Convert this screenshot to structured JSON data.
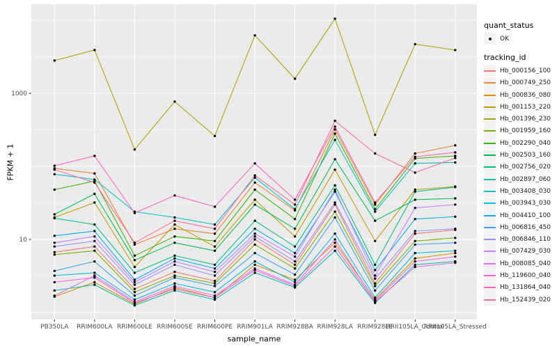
{
  "colors": {
    "panel_bg": "#EBEBEB",
    "grid": "#FFFFFF",
    "tick_label": "#4D4D4D",
    "tick_mark": "#333333",
    "point": "#000000",
    "legend_key_bg": "#F2F2F2"
  },
  "legend": {
    "quant_status": {
      "title": "quant_status",
      "items": [
        {
          "label": "OK",
          "marker": "point"
        }
      ]
    },
    "tracking_id": {
      "title": "tracking_id"
    }
  },
  "chart_data": {
    "type": "line",
    "title": "",
    "xlabel": "sample_name",
    "ylabel": "FPKM + 1",
    "y_scale": "log10",
    "ylim": [
      0.8,
      15000
    ],
    "y_tick_values": [
      1000,
      10
    ],
    "y_tick_labels": [
      "1000",
      "10"
    ],
    "y_gridlines_major": [
      1,
      10,
      100,
      1000,
      10000
    ],
    "y_gridlines_minor": [
      3.1623,
      31.623,
      316.23,
      3162.3
    ],
    "grid": "on",
    "legend_position": "right",
    "point_marker": "filled-circle",
    "categories": [
      "PB350LA",
      "RRIM600LA",
      "RRIM600LE",
      "RRIM600SE",
      "RRIM600PE",
      "RRIM901LA",
      "RRIM928BA",
      "RRIM928LA",
      "RRIM928LE",
      "RRII105LA_Control",
      "RRII105LA_Stressed"
    ],
    "series": [
      {
        "tracking_id": "Hb_000156_100",
        "quant_status": "OK",
        "color": "#F8766D",
        "values": [
          6.7,
          8,
          2.1,
          3.6,
          2.7,
          10,
          4.5,
          30,
          2.5,
          12,
          13.5
        ]
      },
      {
        "tracking_id": "Hb_000749_250",
        "quant_status": "OK",
        "color": "#EA8331",
        "values": [
          94,
          80,
          8.5,
          14,
          12,
          60,
          25,
          320,
          30,
          150,
          194
        ]
      },
      {
        "tracking_id": "Hb_000836_080",
        "quant_status": "OK",
        "color": "#D89000",
        "values": [
          1.65,
          2.6,
          1.3,
          2.2,
          1.6,
          4.5,
          2.8,
          9,
          1.5,
          5.5,
          6.5
        ]
      },
      {
        "tracking_id": "Hb_001153_220",
        "quant_status": "OK",
        "color": "#C09B00",
        "values": [
          20,
          32,
          4.2,
          16,
          8,
          35,
          11,
          90,
          9.5,
          48,
          53
        ]
      },
      {
        "tracking_id": "Hb_001396_230",
        "quant_status": "OK",
        "color": "#A3A500",
        "values": [
          2800,
          3900,
          170,
          770,
          260,
          6200,
          1580,
          10500,
          270,
          4700,
          3900
        ]
      },
      {
        "tracking_id": "Hb_001959_160",
        "quant_status": "OK",
        "color": "#7CAE00",
        "values": [
          6.2,
          7,
          1.9,
          3.2,
          2.5,
          8.5,
          4,
          24,
          2.3,
          9.5,
          10.5
        ]
      },
      {
        "tracking_id": "Hb_002290_040",
        "quant_status": "OK",
        "color": "#39B600",
        "values": [
          48,
          63,
          6,
          11,
          9.5,
          48,
          19,
          280,
          26,
          128,
          139
        ]
      },
      {
        "tracking_id": "Hb_002503_160",
        "quant_status": "OK",
        "color": "#00BB4E",
        "values": [
          22,
          42,
          5.2,
          9,
          7,
          30,
          14,
          125,
          18,
          35,
          36.5
        ]
      },
      {
        "tracking_id": "Hb_002756_020",
        "quant_status": "OK",
        "color": "#00BF7D",
        "values": [
          19.5,
          16,
          3.5,
          6,
          4.5,
          18,
          8,
          55,
          4.5,
          45,
          52
        ]
      },
      {
        "tracking_id": "Hb_002897_060",
        "quant_status": "OK",
        "color": "#00C1A3",
        "values": [
          2,
          2.4,
          1.25,
          2,
          1.5,
          3.5,
          2.2,
          7,
          1.35,
          4.5,
          5
        ]
      },
      {
        "tracking_id": "Hb_003408_030",
        "quant_status": "OK",
        "color": "#00BFC4",
        "values": [
          78,
          66,
          24,
          20,
          16,
          70,
          26,
          230,
          24,
          110,
          113
        ]
      },
      {
        "tracking_id": "Hb_003943_030",
        "quant_status": "OK",
        "color": "#00BAE0",
        "values": [
          3.2,
          3.5,
          1.5,
          2.5,
          1.9,
          5,
          2.6,
          12,
          1.6,
          6.5,
          7
        ]
      },
      {
        "tracking_id": "Hb_004410_100",
        "quant_status": "OK",
        "color": "#00B0F6",
        "values": [
          11.2,
          13,
          2.8,
          5.5,
          4,
          14,
          6.5,
          45,
          3.8,
          19,
          20.5
        ]
      },
      {
        "tracking_id": "Hb_006816_450",
        "quant_status": "OK",
        "color": "#35A2FF",
        "values": [
          3.7,
          5,
          1.7,
          3,
          2.3,
          6.5,
          3.3,
          20,
          2,
          8.5,
          9
        ]
      },
      {
        "tracking_id": "Hb_006846_110",
        "quant_status": "OK",
        "color": "#9590FF",
        "values": [
          8,
          9.5,
          2.4,
          4.5,
          3.2,
          11,
          5,
          32,
          2.9,
          13,
          14
        ]
      },
      {
        "tracking_id": "Hb_007429_030",
        "quant_status": "OK",
        "color": "#C77CFF",
        "values": [
          9,
          11,
          2.6,
          5,
          3.6,
          12,
          5.8,
          48,
          3.2,
          27,
          30
        ]
      },
      {
        "tracking_id": "Hb_008085_040",
        "quant_status": "OK",
        "color": "#E76BF3",
        "values": [
          1.7,
          3.2,
          1.4,
          2.3,
          1.7,
          4,
          2.4,
          10,
          1.45,
          5,
          5.8
        ]
      },
      {
        "tracking_id": "Hb_119600_040",
        "quant_status": "OK",
        "color": "#FA62DB",
        "values": [
          2.6,
          3,
          1.35,
          2.1,
          1.6,
          3.8,
          2.3,
          8,
          1.4,
          4.2,
          4.8
        ]
      },
      {
        "tracking_id": "Hb_131864_040",
        "quant_status": "OK",
        "color": "#FF62BC",
        "values": [
          102,
          139,
          23,
          40,
          28,
          110,
          35,
          350,
          32,
          135,
          155
        ]
      },
      {
        "tracking_id": "Hb_152439_020",
        "quant_status": "OK",
        "color": "#FF6A98",
        "values": [
          90,
          60,
          9,
          18,
          14,
          75,
          30,
          420,
          150,
          82,
          130
        ]
      }
    ]
  }
}
